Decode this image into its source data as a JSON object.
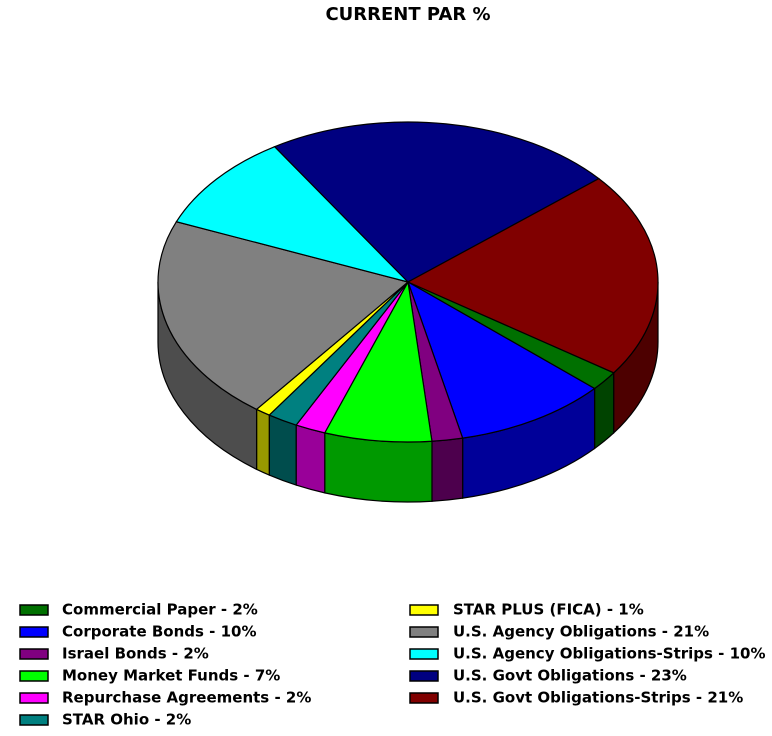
{
  "chart_data": {
    "type": "pie",
    "title": "CURRENT PAR %",
    "categories": [
      "Commercial Paper - 2%",
      "Corporate Bonds - 10%",
      "Israel Bonds - 2%",
      "Money Market Funds - 7%",
      "Repurchase Agreements - 2%",
      "STAR Ohio - 2%",
      "STAR PLUS (FICA) - 1%",
      "U.S. Agency Obligations - 21%",
      "U.S. Agency Obligations-Strips - 10%",
      "U.S. Govt Obligations - 23%",
      "U.S. Govt Obligations-Strips - 21%"
    ],
    "values": [
      2,
      10,
      2,
      7,
      2,
      2,
      1,
      21,
      10,
      23,
      21
    ],
    "colors": [
      "#007000",
      "#0000ff",
      "#800080",
      "#00ff00",
      "#ff00ff",
      "#008080",
      "#ffff00",
      "#808080",
      "#00ffff",
      "#000080",
      "#800000"
    ],
    "legend": "bottom"
  }
}
